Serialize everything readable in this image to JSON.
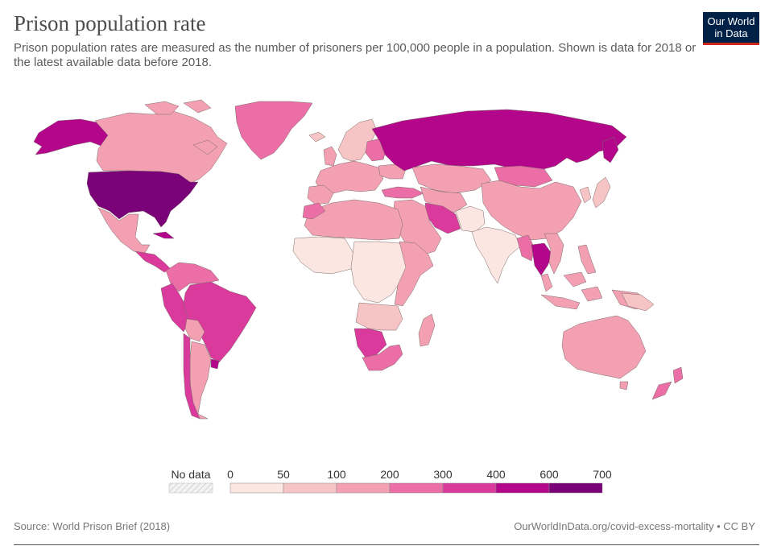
{
  "title": "Prison population rate",
  "subtitle": "Prison population rates are measured as the number of prisoners per 100,000 people in a population. Shown is data for 2018 or the latest available data before 2018.",
  "logo": {
    "line1": "Our World",
    "line2": "in Data"
  },
  "legend": {
    "no_data_label": "No data",
    "ticks": [
      "0",
      "50",
      "100",
      "200",
      "300",
      "400",
      "600",
      "700"
    ],
    "bins": [
      {
        "from": 0,
        "to": 50,
        "color": "#fbe6e1"
      },
      {
        "from": 50,
        "to": 100,
        "color": "#f7c4c6"
      },
      {
        "from": 100,
        "to": 200,
        "color": "#f3a0b3"
      },
      {
        "from": 200,
        "to": 300,
        "color": "#eb6fa6"
      },
      {
        "from": 300,
        "to": 400,
        "color": "#d93a9c"
      },
      {
        "from": 400,
        "to": 600,
        "color": "#b3068a"
      },
      {
        "from": 600,
        "to": 700,
        "color": "#7a0177"
      }
    ]
  },
  "regions": [
    {
      "name": "United States",
      "rate_bin": "600-700"
    },
    {
      "name": "Russia",
      "rate_bin": "400-600"
    },
    {
      "name": "Brazil",
      "rate_bin": "300-400"
    },
    {
      "name": "Canada",
      "rate_bin": "100-200"
    },
    {
      "name": "China",
      "rate_bin": "100-200"
    },
    {
      "name": "Australia",
      "rate_bin": "100-200"
    },
    {
      "name": "India",
      "rate_bin": "0-50"
    },
    {
      "name": "South Africa",
      "rate_bin": "200-300"
    },
    {
      "name": "Greenland",
      "rate_bin": "200-300"
    },
    {
      "name": "Thailand",
      "rate_bin": "400-600"
    },
    {
      "name": "Mexico",
      "rate_bin": "100-200"
    },
    {
      "name": "Argentina",
      "rate_bin": "100-200"
    }
  ],
  "footer": {
    "source": "Source: World Prison Brief (2018)",
    "credit": "OurWorldInData.org/covid-excess-mortality • CC BY"
  }
}
